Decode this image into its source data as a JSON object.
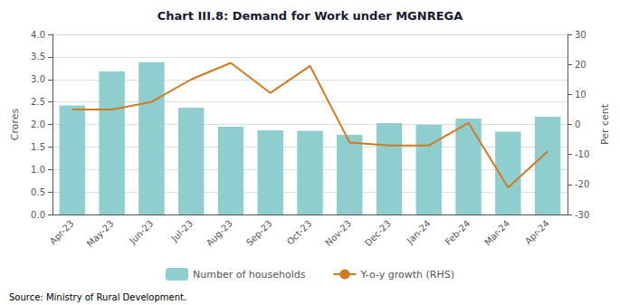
{
  "chart_data": {
    "type": "bar",
    "title": "Chart III.8: Demand for Work under MGNREGA",
    "categories": [
      "Apr-23",
      "May-23",
      "Jun-23",
      "Jul-23",
      "Aug-23",
      "Sep-23",
      "Oct-23",
      "Nov-23",
      "Dec-23",
      "Jan-24",
      "Feb-24",
      "Mar-24",
      "Apr-24"
    ],
    "series": [
      {
        "name": "Number of households",
        "type": "bar",
        "color": "#8ecece",
        "values": [
          2.42,
          3.18,
          3.38,
          2.37,
          1.95,
          1.87,
          1.86,
          1.77,
          2.03,
          1.99,
          2.13,
          1.84,
          2.17
        ]
      },
      {
        "name": "Y-o-y growth (RHS)",
        "type": "line",
        "axis": "y2",
        "color": "#d2791e",
        "values": [
          5.0,
          5.0,
          7.5,
          15.0,
          20.5,
          10.5,
          19.5,
          -6.0,
          -7.0,
          -7.0,
          0.5,
          -21.0,
          -9.0
        ]
      }
    ],
    "ylabel": "Crores",
    "y2label": "Per cent",
    "ylim": [
      0.0,
      4.0
    ],
    "yticks": [
      {
        "value": 0,
        "label": "0.0"
      },
      0.5,
      {
        "value": 1,
        "label": "1.0"
      },
      1.5,
      {
        "value": 2,
        "label": "2.0"
      },
      2.5,
      {
        "value": 3,
        "label": "3.0"
      },
      3.5,
      {
        "value": 4,
        "label": "4.0"
      }
    ],
    "y2lim": [
      -30,
      30
    ],
    "y2ticks": [
      -30,
      -20,
      -10,
      0,
      10,
      20,
      30
    ],
    "grid": true,
    "legend": "bottom",
    "annotations": [
      "Source: Ministry of Rural Development."
    ]
  }
}
